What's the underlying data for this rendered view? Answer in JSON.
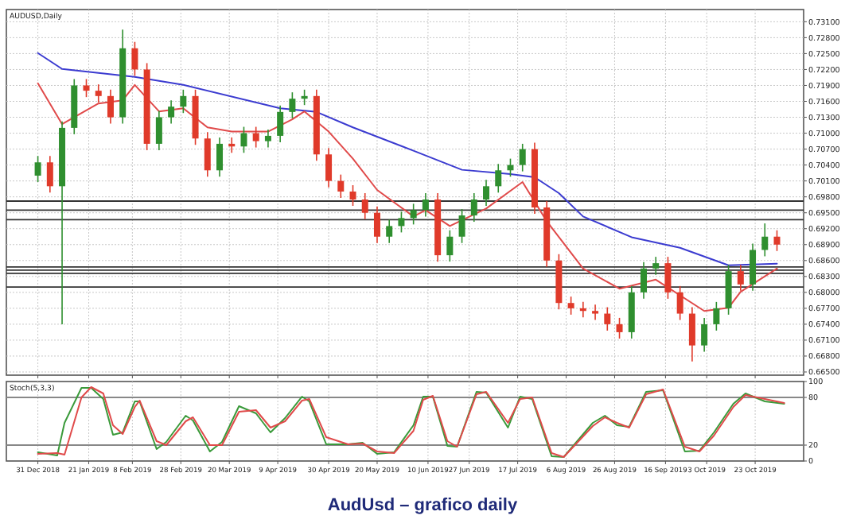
{
  "chart_data": [
    {
      "type": "candlestick",
      "title": "AUDUSD,Daily",
      "x": [
        "2018-12-31",
        "2019-01-05",
        "2019-01-10",
        "2019-01-15",
        "2019-01-20",
        "2019-01-25",
        "2019-01-30",
        "2019-02-04",
        "2019-02-09",
        "2019-02-14",
        "2019-02-19",
        "2019-02-24",
        "2019-03-01",
        "2019-03-06",
        "2019-03-11",
        "2019-03-16",
        "2019-03-21",
        "2019-03-26",
        "2019-03-31",
        "2019-04-05",
        "2019-04-10",
        "2019-04-15",
        "2019-04-20",
        "2019-04-25",
        "2019-04-30",
        "2019-05-05",
        "2019-05-10",
        "2019-05-15",
        "2019-05-20",
        "2019-05-25",
        "2019-05-30",
        "2019-06-04",
        "2019-06-09",
        "2019-06-14",
        "2019-06-19",
        "2019-06-24",
        "2019-06-29",
        "2019-07-04",
        "2019-07-09",
        "2019-07-14",
        "2019-07-19",
        "2019-07-24",
        "2019-07-29",
        "2019-08-03",
        "2019-08-08",
        "2019-08-13",
        "2019-08-18",
        "2019-08-23",
        "2019-08-28",
        "2019-09-02",
        "2019-09-07",
        "2019-09-12",
        "2019-09-17",
        "2019-09-22",
        "2019-09-27",
        "2019-10-02",
        "2019-10-07",
        "2019-10-12",
        "2019-10-17",
        "2019-10-22",
        "2019-10-27",
        "2019-11-01"
      ],
      "ohlc": [
        [
          0.702,
          0.7057,
          0.7008,
          0.7045
        ],
        [
          0.7045,
          0.7057,
          0.6988,
          0.7
        ],
        [
          0.7,
          0.7122,
          0.674,
          0.711
        ],
        [
          0.711,
          0.7202,
          0.7098,
          0.719
        ],
        [
          0.719,
          0.7202,
          0.7168,
          0.718
        ],
        [
          0.718,
          0.7192,
          0.7158,
          0.717
        ],
        [
          0.717,
          0.7182,
          0.7118,
          0.713
        ],
        [
          0.713,
          0.7295,
          0.7118,
          0.726
        ],
        [
          0.726,
          0.7272,
          0.7208,
          0.722
        ],
        [
          0.722,
          0.7232,
          0.7068,
          0.708
        ],
        [
          0.708,
          0.7142,
          0.7068,
          0.713
        ],
        [
          0.713,
          0.7162,
          0.7118,
          0.715
        ],
        [
          0.715,
          0.7182,
          0.7138,
          0.717
        ],
        [
          0.717,
          0.7182,
          0.7078,
          0.709
        ],
        [
          0.709,
          0.7102,
          0.7018,
          0.703
        ],
        [
          0.703,
          0.7092,
          0.7018,
          0.708
        ],
        [
          0.708,
          0.7092,
          0.7063,
          0.7075
        ],
        [
          0.7075,
          0.7112,
          0.7063,
          0.71
        ],
        [
          0.71,
          0.7112,
          0.7073,
          0.7085
        ],
        [
          0.7085,
          0.7107,
          0.7073,
          0.7095
        ],
        [
          0.7095,
          0.7152,
          0.7083,
          0.714
        ],
        [
          0.714,
          0.7177,
          0.7128,
          0.7165
        ],
        [
          0.7165,
          0.7182,
          0.7153,
          0.717
        ],
        [
          0.717,
          0.7182,
          0.7048,
          0.706
        ],
        [
          0.706,
          0.7072,
          0.6998,
          0.701
        ],
        [
          0.701,
          0.7022,
          0.6978,
          0.699
        ],
        [
          0.699,
          0.7002,
          0.6963,
          0.6975
        ],
        [
          0.6975,
          0.6987,
          0.6938,
          0.695
        ],
        [
          0.695,
          0.6962,
          0.6893,
          0.6905
        ],
        [
          0.6905,
          0.6937,
          0.6893,
          0.6925
        ],
        [
          0.6925,
          0.6952,
          0.6913,
          0.694
        ],
        [
          0.694,
          0.6967,
          0.6928,
          0.6955
        ],
        [
          0.6955,
          0.6987,
          0.6943,
          0.6975
        ],
        [
          0.6975,
          0.6987,
          0.6858,
          0.687
        ],
        [
          0.687,
          0.6917,
          0.6858,
          0.6905
        ],
        [
          0.6905,
          0.6957,
          0.6893,
          0.6945
        ],
        [
          0.6945,
          0.6987,
          0.6933,
          0.6975
        ],
        [
          0.6975,
          0.7012,
          0.6963,
          0.7
        ],
        [
          0.7,
          0.7042,
          0.6988,
          0.703
        ],
        [
          0.703,
          0.7052,
          0.7018,
          0.704
        ],
        [
          0.704,
          0.708,
          0.7028,
          0.707
        ],
        [
          0.707,
          0.7082,
          0.6948,
          0.696
        ],
        [
          0.696,
          0.6972,
          0.6848,
          0.686
        ],
        [
          0.686,
          0.6872,
          0.6768,
          0.678
        ],
        [
          0.678,
          0.6792,
          0.6758,
          0.677
        ],
        [
          0.677,
          0.6782,
          0.6753,
          0.6765
        ],
        [
          0.6765,
          0.6777,
          0.6748,
          0.676
        ],
        [
          0.676,
          0.6772,
          0.6728,
          0.674
        ],
        [
          0.674,
          0.6752,
          0.6713,
          0.6725
        ],
        [
          0.6725,
          0.6812,
          0.6713,
          0.68
        ],
        [
          0.68,
          0.6857,
          0.6788,
          0.6845
        ],
        [
          0.6845,
          0.6867,
          0.6833,
          0.6855
        ],
        [
          0.6855,
          0.6867,
          0.6788,
          0.68
        ],
        [
          0.68,
          0.6812,
          0.6748,
          0.676
        ],
        [
          0.676,
          0.6772,
          0.667,
          0.67
        ],
        [
          0.67,
          0.6752,
          0.6688,
          0.674
        ],
        [
          0.674,
          0.6782,
          0.6728,
          0.677
        ],
        [
          0.677,
          0.6852,
          0.6758,
          0.684
        ],
        [
          0.684,
          0.6852,
          0.6803,
          0.6815
        ],
        [
          0.6815,
          0.6892,
          0.6803,
          0.688
        ],
        [
          0.688,
          0.693,
          0.6868,
          0.6905
        ],
        [
          0.6905,
          0.6917,
          0.6878,
          0.689
        ]
      ],
      "series": [
        {
          "type": "line",
          "color": "#3b3bd0",
          "x": [
            "2018-12-31",
            "2019-01-10",
            "2019-02-09",
            "2019-03-01",
            "2019-04-10",
            "2019-04-25",
            "2019-05-10",
            "2019-06-04",
            "2019-06-24",
            "2019-07-14",
            "2019-07-24",
            "2019-08-03",
            "2019-08-13",
            "2019-09-02",
            "2019-09-22",
            "2019-10-12",
            "2019-11-01"
          ],
          "values": [
            0.7251,
            0.7221,
            0.7206,
            0.7191,
            0.7147,
            0.714,
            0.7111,
            0.7067,
            0.7031,
            0.7023,
            0.7017,
            0.6987,
            0.6943,
            0.6904,
            0.6884,
            0.6851,
            0.6854
          ]
        },
        {
          "type": "line",
          "color": "#e04a4a",
          "x": [
            "2018-12-31",
            "2019-01-10",
            "2019-01-25",
            "2019-02-04",
            "2019-02-09",
            "2019-02-19",
            "2019-03-01",
            "2019-03-11",
            "2019-03-21",
            "2019-04-05",
            "2019-04-15",
            "2019-04-20",
            "2019-04-30",
            "2019-05-10",
            "2019-05-20",
            "2019-06-04",
            "2019-06-09",
            "2019-06-19",
            "2019-07-04",
            "2019-07-19",
            "2019-07-29",
            "2019-08-13",
            "2019-08-28",
            "2019-09-12",
            "2019-10-02",
            "2019-10-12",
            "2019-10-17",
            "2019-11-01"
          ],
          "values": [
            0.7194,
            0.7117,
            0.7156,
            0.7162,
            0.7191,
            0.7141,
            0.7147,
            0.7111,
            0.7103,
            0.7103,
            0.7126,
            0.7141,
            0.7103,
            0.7052,
            0.6993,
            0.6943,
            0.6955,
            0.6925,
            0.6958,
            0.7008,
            0.6934,
            0.6845,
            0.6807,
            0.6824,
            0.6765,
            0.6771,
            0.6801,
            0.6845
          ]
        }
      ],
      "xlim": [
        "2018-12-18",
        "2019-11-12"
      ],
      "xticks": [
        "2018-12-31",
        "2019-01-21",
        "2019-02-08",
        "2019-02-28",
        "2019-03-20",
        "2019-04-09",
        "2019-04-30",
        "2019-05-20",
        "2019-06-10",
        "2019-06-27",
        "2019-07-17",
        "2019-08-06",
        "2019-08-26",
        "2019-09-16",
        "2019-10-03",
        "2019-10-23"
      ],
      "ylim": [
        0.6644,
        0.7333
      ],
      "yticks": [
        {
          "value": 0.665,
          "label": "0.66500"
        },
        {
          "value": 0.668,
          "label": "0.66800"
        },
        {
          "value": 0.671,
          "label": "0.67100"
        },
        {
          "value": 0.674,
          "label": "0.67400"
        },
        {
          "value": 0.677,
          "label": "0.67700"
        },
        {
          "value": 0.68,
          "label": "0.68000"
        },
        {
          "value": 0.683,
          "label": "0.68300"
        },
        {
          "value": 0.686,
          "label": "0.68600"
        },
        {
          "value": 0.689,
          "label": "0.68900"
        },
        {
          "value": 0.692,
          "label": "0.69200"
        },
        {
          "value": 0.695,
          "label": "0.69500"
        },
        {
          "value": 0.698,
          "label": "0.69800"
        },
        {
          "value": 0.701,
          "label": "0.70100"
        },
        {
          "value": 0.704,
          "label": "0.70400"
        },
        {
          "value": 0.707,
          "label": "0.70700"
        },
        {
          "value": 0.71,
          "label": "0.71000"
        },
        {
          "value": 0.713,
          "label": "0.71300"
        },
        {
          "value": 0.716,
          "label": "0.71600"
        },
        {
          "value": 0.719,
          "label": "0.71900"
        },
        {
          "value": 0.722,
          "label": "0.72200"
        },
        {
          "value": 0.725,
          "label": "0.72500"
        },
        {
          "value": 0.728,
          "label": "0.72800"
        },
        {
          "value": 0.731,
          "label": "0.73100"
        }
      ],
      "ref_lines": [
        {
          "axis": "y",
          "value": 0.6972,
          "color": "#333333"
        },
        {
          "axis": "y",
          "value": 0.6955,
          "color": "#333333"
        },
        {
          "axis": "y",
          "value": 0.6937,
          "color": "#333333"
        },
        {
          "axis": "y",
          "value": 0.6848,
          "color": "#333333"
        },
        {
          "axis": "y",
          "value": 0.6842,
          "color": "#333333"
        },
        {
          "axis": "y",
          "value": 0.6836,
          "color": "#333333"
        },
        {
          "axis": "y",
          "value": 0.681,
          "color": "#333333"
        }
      ],
      "grid": true,
      "tick_labels": "y"
    },
    {
      "type": "line",
      "title": "Stoch(5,3,3)",
      "series": [
        {
          "color": "#3a9a3a",
          "x": [
            "2018-12-31",
            "2019-01-08",
            "2019-01-11",
            "2019-01-18",
            "2019-01-22",
            "2019-01-27",
            "2019-01-31",
            "2019-02-04",
            "2019-02-09",
            "2019-02-11",
            "2019-02-18",
            "2019-02-22",
            "2019-03-02",
            "2019-03-05",
            "2019-03-12",
            "2019-03-17",
            "2019-03-24",
            "2019-03-31",
            "2019-04-06",
            "2019-04-12",
            "2019-04-19",
            "2019-04-22",
            "2019-04-29",
            "2019-05-08",
            "2019-05-14",
            "2019-05-20",
            "2019-05-27",
            "2019-06-04",
            "2019-06-08",
            "2019-06-12",
            "2019-06-18",
            "2019-06-22",
            "2019-06-30",
            "2019-07-04",
            "2019-07-13",
            "2019-07-18",
            "2019-07-23",
            "2019-07-31",
            "2019-08-05",
            "2019-08-17",
            "2019-08-22",
            "2019-08-27",
            "2019-09-01",
            "2019-09-08",
            "2019-09-15",
            "2019-09-24",
            "2019-09-30",
            "2019-10-06",
            "2019-10-14",
            "2019-10-19",
            "2019-10-27",
            "2019-11-04"
          ],
          "values": [
            11,
            7,
            48,
            92,
            92,
            78,
            33,
            36,
            75,
            75,
            15,
            24,
            57,
            51,
            12,
            24,
            69,
            60,
            36,
            54,
            81,
            75,
            21,
            21,
            23,
            9,
            11,
            45,
            81,
            81,
            19,
            18,
            87,
            86,
            42,
            81,
            78,
            6,
            5,
            48,
            57,
            45,
            43,
            87,
            89,
            12,
            13,
            36,
            72,
            85,
            75,
            72
          ]
        },
        {
          "color": "#e04a4a",
          "x": [
            "2018-12-31",
            "2019-01-08",
            "2019-01-11",
            "2019-01-18",
            "2019-01-22",
            "2019-01-27",
            "2019-01-31",
            "2019-02-04",
            "2019-02-09",
            "2019-02-11",
            "2019-02-18",
            "2019-02-22",
            "2019-03-02",
            "2019-03-05",
            "2019-03-12",
            "2019-03-17",
            "2019-03-24",
            "2019-03-31",
            "2019-04-06",
            "2019-04-12",
            "2019-04-19",
            "2019-04-22",
            "2019-04-29",
            "2019-05-08",
            "2019-05-14",
            "2019-05-20",
            "2019-05-27",
            "2019-06-04",
            "2019-06-08",
            "2019-06-12",
            "2019-06-18",
            "2019-06-22",
            "2019-06-30",
            "2019-07-04",
            "2019-07-13",
            "2019-07-18",
            "2019-07-23",
            "2019-07-31",
            "2019-08-05",
            "2019-08-17",
            "2019-08-22",
            "2019-08-27",
            "2019-09-01",
            "2019-09-08",
            "2019-09-15",
            "2019-09-24",
            "2019-09-30",
            "2019-10-06",
            "2019-10-14",
            "2019-10-19",
            "2019-10-27",
            "2019-11-04"
          ],
          "values": [
            9,
            10,
            8,
            80,
            93,
            85,
            45,
            34,
            68,
            76,
            25,
            20,
            50,
            55,
            20,
            20,
            62,
            64,
            42,
            50,
            76,
            78,
            30,
            21,
            22,
            12,
            10,
            38,
            77,
            82,
            25,
            18,
            84,
            87,
            48,
            78,
            80,
            10,
            5,
            44,
            55,
            48,
            42,
            84,
            90,
            18,
            12,
            32,
            68,
            83,
            78,
            73
          ]
        }
      ],
      "xlim": [
        "2018-12-18",
        "2019-11-12"
      ],
      "xticks": [
        {
          "value": "2018-12-31",
          "label": "31 Dec 2018"
        },
        {
          "value": "2019-01-21",
          "label": "21 Jan 2019"
        },
        {
          "value": "2019-02-08",
          "label": "8 Feb 2019"
        },
        {
          "value": "2019-02-28",
          "label": "28 Feb 2019"
        },
        {
          "value": "2019-03-20",
          "label": "20 Mar 2019"
        },
        {
          "value": "2019-04-09",
          "label": "9 Apr 2019"
        },
        {
          "value": "2019-04-30",
          "label": "30 Apr 2019"
        },
        {
          "value": "2019-05-20",
          "label": "20 May 2019"
        },
        {
          "value": "2019-06-10",
          "label": "10 Jun 2019"
        },
        {
          "value": "2019-06-27",
          "label": "27 Jun 2019"
        },
        {
          "value": "2019-07-17",
          "label": "17 Jul 2019"
        },
        {
          "value": "2019-08-06",
          "label": "6 Aug 2019"
        },
        {
          "value": "2019-08-26",
          "label": "26 Aug 2019"
        },
        {
          "value": "2019-09-16",
          "label": "16 Sep 2019"
        },
        {
          "value": "2019-10-03",
          "label": "3 Oct 2019"
        },
        {
          "value": "2019-10-23",
          "label": "23 Oct 2019"
        }
      ],
      "ylim": [
        0,
        100
      ],
      "yticks": [
        0,
        20,
        80,
        100
      ],
      "ref_lines": [
        {
          "axis": "y",
          "value": 80,
          "color": "#888888"
        },
        {
          "axis": "y",
          "value": 20,
          "color": "#888888"
        }
      ],
      "grid": "x",
      "annotations": [
        "AudUsd – grafico daily"
      ]
    }
  ]
}
